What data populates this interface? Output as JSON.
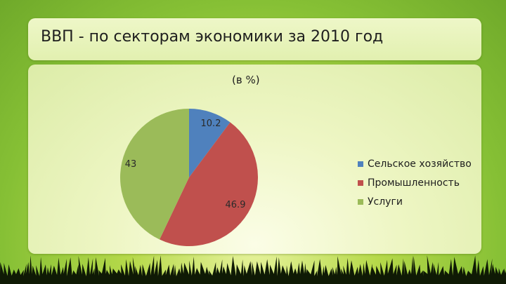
{
  "slide": {
    "title": "ВВП - по секторам экономики за 2010 год"
  },
  "chart_data": {
    "type": "pie",
    "title": "(в %)",
    "categories": [
      "Сельское хозяйство",
      "Промышленность",
      "Услуги"
    ],
    "values": [
      10.2,
      46.9,
      43
    ],
    "data_labels": [
      "10.2",
      "46.9",
      "43"
    ],
    "colors": [
      "#4f81bd",
      "#c0504d",
      "#9bbb59"
    ],
    "legend_position": "right",
    "start_angle": "12 o'clock",
    "direction": "clockwise"
  }
}
